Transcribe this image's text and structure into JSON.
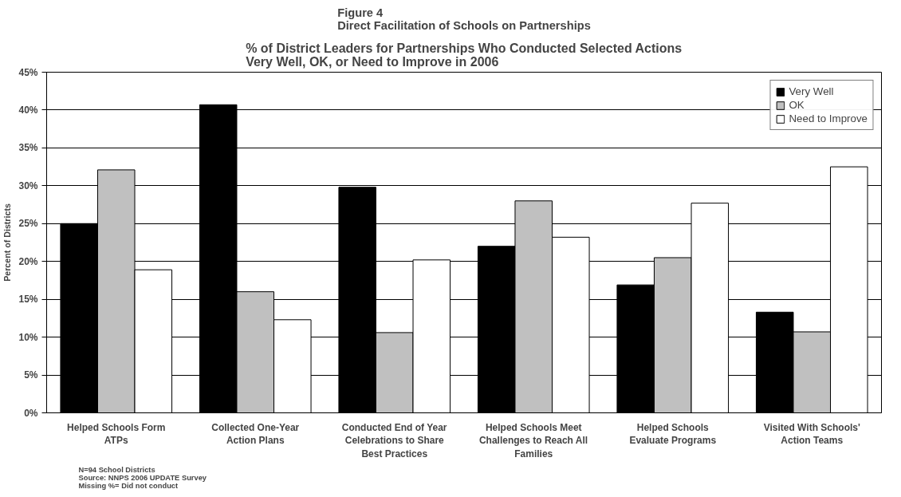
{
  "chart_data": {
    "type": "bar",
    "title": "Figure 4\nDirect Facilitation of Schools on Partnerships",
    "subtitle": "% of District Leaders for Partnerships Who Conducted Selected Actions\nVery Well, OK, or Need to Improve in 2006",
    "ylabel": "Percent of Districts",
    "categories": [
      "Helped Schools Form\nATPs",
      "Collected One-Year\nAction Plans",
      "Conducted End of Year\nCelebrations to Share\nBest Practices",
      "Helped Schools Meet\nChallenges to Reach All\nFamilies",
      "Helped Schools\nEvaluate Programs",
      "Visited With Schools'\nAction Teams"
    ],
    "series": [
      {
        "name": "Very Well",
        "color": "#000000",
        "values": [
          25.0,
          40.7,
          29.8,
          22.0,
          16.9,
          13.3
        ]
      },
      {
        "name": "OK",
        "color": "#c0c0c0",
        "values": [
          32.1,
          16.0,
          10.6,
          28.0,
          20.5,
          10.7
        ]
      },
      {
        "name": "Need to Improve",
        "color": "#ffffff",
        "values": [
          18.9,
          12.3,
          20.2,
          23.2,
          27.7,
          32.5
        ]
      }
    ],
    "ylim": [
      0,
      45
    ],
    "yticks": [
      {
        "value": 0,
        "label": "0%"
      },
      {
        "value": 5,
        "label": "5%"
      },
      {
        "value": 10,
        "label": "10%"
      },
      {
        "value": 15,
        "label": "15%"
      },
      {
        "value": 20,
        "label": "20%"
      },
      {
        "value": 25,
        "label": "25%"
      },
      {
        "value": 30,
        "label": "30%"
      },
      {
        "value": 35,
        "label": "35%"
      },
      {
        "value": 40,
        "label": "40%"
      },
      {
        "value": 45,
        "label": "45%"
      }
    ],
    "grid": "y",
    "legend": "top right",
    "annotations": [
      "N=94 School Districts",
      "Source: NNPS 2006 UPDATE Survey",
      "Missing %= Did not conduct"
    ]
  }
}
